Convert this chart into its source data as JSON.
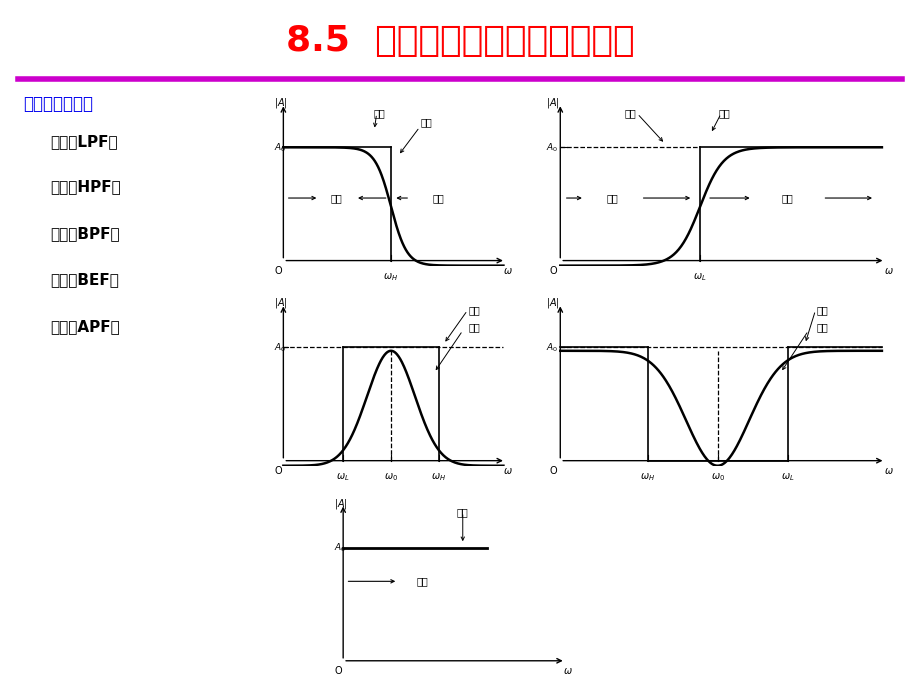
{
  "title": "8.5  滤波电路的基本概念与分类",
  "title_color": "#FF0000",
  "title_fontsize": 26,
  "separator_color": "#CC00CC",
  "bg_color": "#FFFFFF",
  "left_label_color": "#0000EE",
  "left_label": "按频率特性分：",
  "filter_types": [
    "低通（LPF）",
    "高通（HPF）",
    "带通（BPF）",
    "带阻（BEF）",
    "全通（APF）"
  ],
  "passband": "通带",
  "stopband": "阻带",
  "ideal": "理想",
  "actual": "实际"
}
